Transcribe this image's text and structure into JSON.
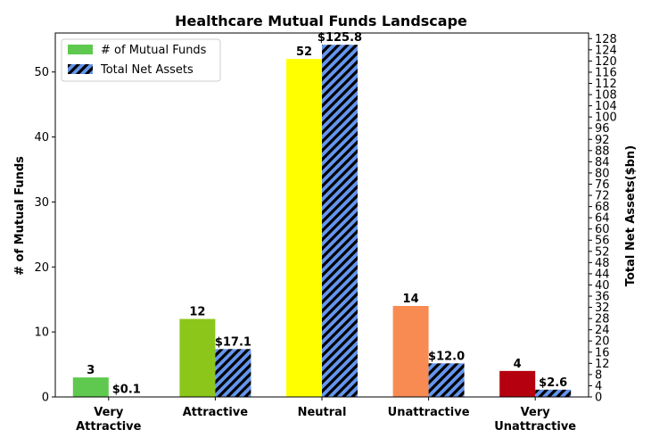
{
  "chart_data": {
    "type": "bar",
    "title": "Healthcare Mutual Funds Landscape",
    "xlabel": "",
    "ylabel": "# of Mutual Funds",
    "ylabel_right": "Total Net Assets($bn)",
    "categories": [
      [
        "Very",
        "Attractive"
      ],
      [
        "Attractive"
      ],
      [
        "Neutral"
      ],
      [
        "Unattractive"
      ],
      [
        "Very",
        "Unattractive"
      ]
    ],
    "ylim": [
      0,
      56
    ],
    "ylim_right": [
      0,
      130
    ],
    "yticks": [
      0,
      10,
      20,
      30,
      40,
      50
    ],
    "yticks_right": [
      0,
      4,
      8,
      12,
      16,
      20,
      24,
      28,
      32,
      36,
      40,
      44,
      48,
      52,
      56,
      60,
      64,
      68,
      72,
      76,
      80,
      84,
      88,
      92,
      96,
      100,
      104,
      108,
      112,
      116,
      120,
      124,
      128
    ],
    "grid": false,
    "legend_position": "top-left",
    "series": [
      {
        "name": "# of Mutual Funds",
        "axis": "left",
        "values": [
          3,
          12,
          52,
          14,
          4
        ],
        "labels": [
          "3",
          "12",
          "52",
          "14",
          "4"
        ],
        "colors": [
          "#5ec94e",
          "#8cc61a",
          "#ffff00",
          "#f88b52",
          "#b5000f"
        ],
        "legend_color": "#5ec94e"
      },
      {
        "name": "Total Net Assets",
        "axis": "right",
        "values": [
          0.1,
          17.1,
          125.8,
          12.0,
          2.6
        ],
        "labels": [
          "$0.1",
          "$17.1",
          "$125.8",
          "$12.0",
          "$2.6"
        ],
        "fill": "#6495ed",
        "hatch": "//"
      }
    ]
  }
}
